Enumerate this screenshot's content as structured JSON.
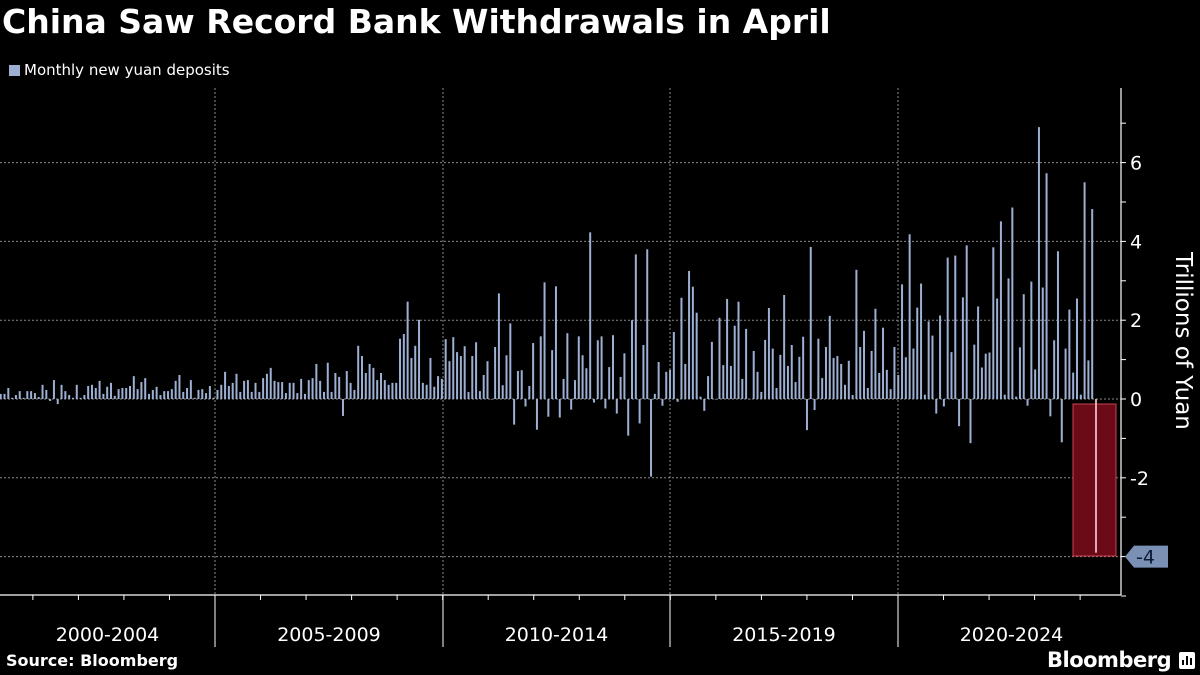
{
  "title": "China Saw Record Bank Withdrawals in April",
  "legend": {
    "label": "Monthly new yuan deposits",
    "color": "#9db0d3"
  },
  "source": "Source: Bloomberg",
  "logo": "Bloomberg",
  "callout": {
    "label": "-4",
    "color": "#7a90b5"
  },
  "highlight": {
    "fill": "#6a0b17",
    "stroke": "#c9434f",
    "bar_color": "#e0a9b1"
  },
  "chart_data": {
    "type": "bar",
    "title": "China Saw Record Bank Withdrawals in April",
    "ylabel": "Trillions of Yuan",
    "ylim": [
      -5,
      7.9
    ],
    "yticks": [
      6,
      4,
      2,
      0,
      -2,
      -4
    ],
    "y_axis_position": "right",
    "grid": true,
    "legend_position": "top-left",
    "x_period_labels": [
      "2000-2004",
      "2005-2009",
      "2010-2014",
      "2015-2019",
      "2020-2024"
    ],
    "frequency": "monthly",
    "last_period": "April 2024",
    "series": [
      {
        "name": "Monthly new yuan deposits",
        "color": "#9db0d3",
        "values": [
          0.13,
          0.13,
          0.28,
          0.03,
          0.1,
          0.2,
          0.03,
          0.2,
          0.2,
          0.15,
          0.05,
          0.36,
          0.23,
          -0.05,
          0.48,
          -0.13,
          0.36,
          0.2,
          0.1,
          0.03,
          0.36,
          0.03,
          0.1,
          0.33,
          0.36,
          0.28,
          0.46,
          0.13,
          0.31,
          0.41,
          0.08,
          0.25,
          0.28,
          0.28,
          0.33,
          0.58,
          0.25,
          0.43,
          0.53,
          0.13,
          0.23,
          0.31,
          0.1,
          0.2,
          0.2,
          0.25,
          0.46,
          0.61,
          0.18,
          0.28,
          0.48,
          0.03,
          0.23,
          0.25,
          0.15,
          0.33,
          0.03,
          0.23,
          0.36,
          0.69,
          0.33,
          0.41,
          0.64,
          0.18,
          0.46,
          0.48,
          0.18,
          0.41,
          0.18,
          0.53,
          0.64,
          0.79,
          0.46,
          0.43,
          0.43,
          0.15,
          0.41,
          0.41,
          0.15,
          0.51,
          0.13,
          0.48,
          0.53,
          0.89,
          0.46,
          0.18,
          0.92,
          0.18,
          0.66,
          0.56,
          -0.43,
          0.71,
          0.41,
          0.23,
          1.35,
          1.09,
          0.66,
          0.89,
          0.79,
          0.48,
          0.66,
          0.48,
          0.36,
          0.41,
          0.41,
          1.53,
          1.65,
          2.47,
          1.04,
          1.35,
          2.01,
          0.41,
          0.36,
          1.04,
          0.31,
          0.58,
          0.51,
          1.52,
          0.96,
          1.57,
          1.19,
          1.09,
          1.34,
          0.18,
          1.09,
          1.44,
          0.2,
          0.61,
          0.96,
          0,
          1.32,
          2.68,
          0.35,
          1.11,
          1.92,
          -0.65,
          0.71,
          0.73,
          -0.19,
          0.33,
          1.42,
          -0.78,
          1.59,
          2.96,
          -0.45,
          1.24,
          2.86,
          -0.47,
          0.51,
          1.67,
          -0.27,
          0.48,
          1.59,
          1.11,
          0.78,
          4.23,
          -0.09,
          1.49,
          1.59,
          -0.24,
          0.81,
          1.62,
          -0.37,
          0.56,
          1.16,
          -0.93,
          2.0,
          3.67,
          -0.62,
          1.37,
          3.8,
          -1.97,
          0.13,
          0.94,
          -0.17,
          0.69,
          0.74,
          1.7,
          -0.07,
          2.57,
          0.89,
          3.25,
          2.85,
          2.19,
          0.06,
          -0.3,
          0.58,
          1.45,
          0,
          2.06,
          0.86,
          2.54,
          0.84,
          1.86,
          2.47,
          0.51,
          1.78,
          0,
          1.22,
          0.69,
          0.18,
          1.5,
          2.31,
          1.28,
          0.28,
          1.12,
          2.64,
          0.84,
          1.37,
          0.43,
          1.07,
          1.58,
          -0.79,
          3.86,
          -0.28,
          1.53,
          0.53,
          1.32,
          2.11,
          1.04,
          1.09,
          0.89,
          0.36,
          0.97,
          0.1,
          3.28,
          1.32,
          1.73,
          0.28,
          1.22,
          2.29,
          0.66,
          1.81,
          0.74,
          0.25,
          1.32,
          0.61,
          2.91,
          1.06,
          4.18,
          1.28,
          2.32,
          2.93,
          0.11,
          1.97,
          1.61,
          -0.37,
          2.12,
          -0.19,
          3.59,
          1.19,
          3.64,
          -0.69,
          2.58,
          3.9,
          -1.12,
          1.38,
          2.35,
          0.8,
          1.15,
          1.18,
          3.85,
          2.55,
          4.51,
          0.11,
          3.06,
          4.86,
          0.06,
          1.31,
          2.66,
          -0.17,
          2.98,
          0.75,
          6.9,
          2.83,
          5.73,
          -0.44,
          1.49,
          3.75,
          -1.1,
          1.28,
          2.27,
          0.67,
          2.55,
          0.11,
          5.5,
          0.98,
          4.82,
          -3.9
        ]
      }
    ]
  }
}
